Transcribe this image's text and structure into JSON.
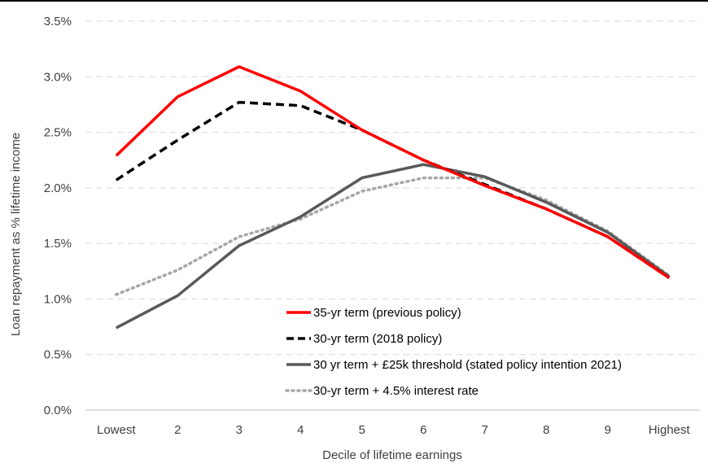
{
  "chart_data": {
    "type": "line",
    "title": "",
    "xlabel": "Decile of lifetime earnings",
    "ylabel": "Loan repayment as % lifetime income",
    "categories": [
      "Lowest",
      "2",
      "3",
      "4",
      "5",
      "6",
      "7",
      "8",
      "9",
      "Highest"
    ],
    "ylim": [
      0,
      3.5
    ],
    "yticks": [
      "0.0%",
      "0.5%",
      "1.0%",
      "1.5%",
      "2.0%",
      "2.5%",
      "3.0%",
      "3.5%"
    ],
    "grid": "horizontal dashed",
    "legend_position": "bottom-right",
    "series": [
      {
        "name": "35-yr term (previous policy)",
        "color": "#ff0000",
        "style": "solid",
        "values": [
          2.29,
          2.82,
          3.09,
          2.87,
          2.52,
          2.25,
          2.02,
          1.81,
          1.56,
          1.19
        ]
      },
      {
        "name": "30-yr term (2018 policy)",
        "color": "#000000",
        "style": "dashed",
        "values": [
          2.07,
          2.43,
          2.77,
          2.74,
          2.52,
          2.25,
          2.03,
          1.81,
          1.56,
          1.19
        ]
      },
      {
        "name": "30 yr term + £25k threshold (stated policy intention 2021)",
        "color": "#595959",
        "style": "solid",
        "values": [
          0.74,
          1.03,
          1.48,
          1.74,
          2.09,
          2.21,
          2.1,
          1.87,
          1.6,
          1.2
        ]
      },
      {
        "name": "30-yr term + 4.5% interest rate",
        "color": "#a6a6a6",
        "style": "dotted",
        "values": [
          1.04,
          1.26,
          1.56,
          1.72,
          1.97,
          2.09,
          2.09,
          1.89,
          1.61,
          1.21
        ]
      }
    ]
  }
}
